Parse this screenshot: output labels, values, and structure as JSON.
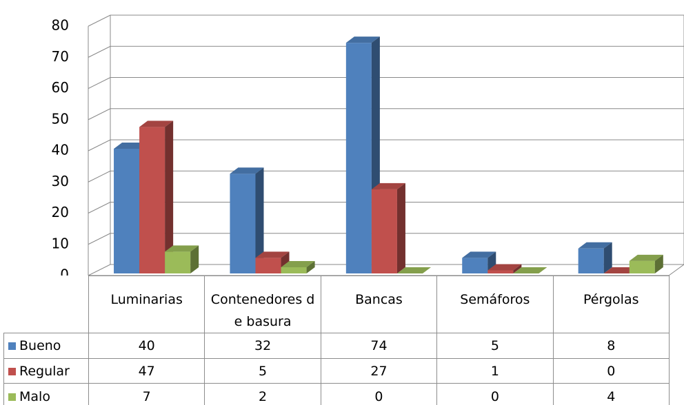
{
  "chart_data": {
    "type": "bar3d",
    "categories": [
      "Luminarias",
      "Contenedores de basura",
      "Bancas",
      "Semáforos",
      "Pérgolas"
    ],
    "series": [
      {
        "name": "Bueno",
        "color": "#4f81bd",
        "values": [
          40,
          32,
          74,
          5,
          8
        ]
      },
      {
        "name": "Regular",
        "color": "#c0504d",
        "values": [
          47,
          5,
          27,
          1,
          0
        ]
      },
      {
        "name": "Malo",
        "color": "#9bbb59",
        "values": [
          7,
          2,
          0,
          0,
          4
        ]
      }
    ],
    "ylim": [
      0,
      80
    ],
    "yticks": [
      0,
      10,
      20,
      30,
      40,
      50,
      60,
      70,
      80
    ],
    "grid": true,
    "data_table": true
  }
}
